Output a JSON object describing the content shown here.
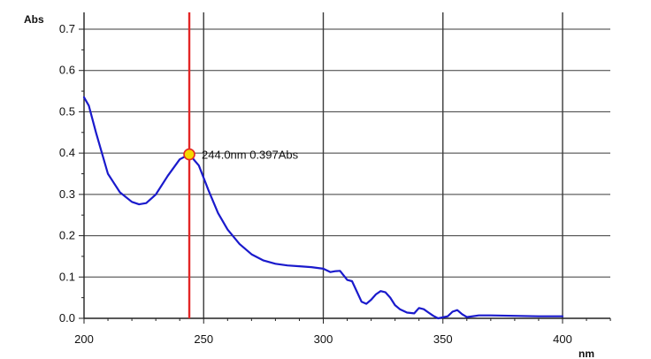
{
  "chart_data": {
    "type": "line",
    "title": "",
    "xlabel": "nm",
    "ylabel": "Abs",
    "xlim": [
      200,
      420
    ],
    "ylim": [
      0.0,
      0.72
    ],
    "x_ticks": [
      200,
      250,
      300,
      350,
      400
    ],
    "x_tick_labels": [
      "200",
      "250",
      "300",
      "350",
      "400"
    ],
    "y_ticks": [
      0.0,
      0.1,
      0.2,
      0.3,
      0.4,
      0.5,
      0.6,
      0.7
    ],
    "y_tick_labels": [
      "0.0",
      "0.1",
      "0.2",
      "0.3",
      "0.4",
      "0.5",
      "0.6",
      "0.7"
    ],
    "grid": true,
    "colors": {
      "spectrum": "#1a1acc",
      "marker_line": "#e32626",
      "marker_point": "#f5d800",
      "grid": "#333333"
    },
    "series": [
      {
        "x": [
          200,
          202,
          205,
          210,
          215,
          220,
          223,
          226,
          230,
          235,
          240,
          244,
          248,
          252,
          256,
          260,
          265,
          270,
          275,
          280,
          285,
          290,
          295,
          300,
          303,
          305,
          307,
          310,
          312,
          314,
          316,
          318,
          320,
          322,
          324,
          326,
          328,
          330,
          332,
          335,
          338,
          340,
          342,
          344,
          346,
          348,
          352,
          354,
          356,
          358,
          360,
          365,
          370,
          380,
          390,
          400
        ],
        "y": [
          0.535,
          0.515,
          0.45,
          0.35,
          0.305,
          0.282,
          0.276,
          0.279,
          0.3,
          0.345,
          0.385,
          0.397,
          0.37,
          0.31,
          0.255,
          0.215,
          0.18,
          0.155,
          0.14,
          0.132,
          0.128,
          0.126,
          0.124,
          0.12,
          0.112,
          0.114,
          0.115,
          0.093,
          0.09,
          0.065,
          0.04,
          0.035,
          0.045,
          0.058,
          0.066,
          0.063,
          0.05,
          0.032,
          0.022,
          0.014,
          0.012,
          0.025,
          0.022,
          0.014,
          0.006,
          0.0,
          0.005,
          0.016,
          0.02,
          0.01,
          0.003,
          0.007,
          0.007,
          0.006,
          0.005,
          0.005
        ]
      }
    ],
    "marker": {
      "x": 244.0,
      "y": 0.397,
      "label": "244.0nm 0.397Abs"
    }
  }
}
